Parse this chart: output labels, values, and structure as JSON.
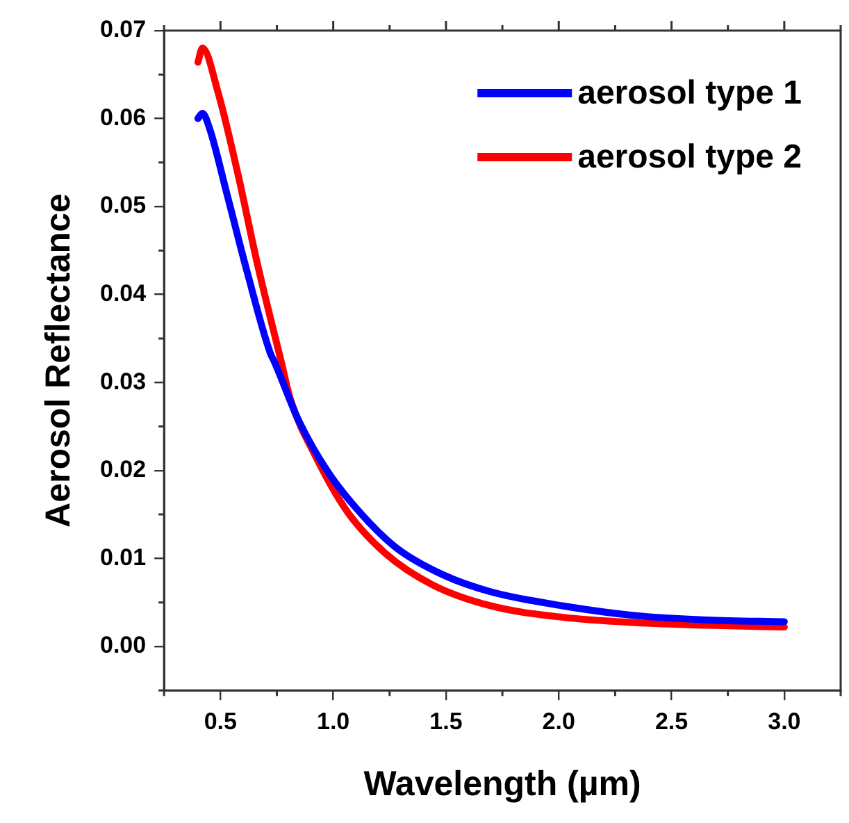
{
  "chart_data": {
    "type": "line",
    "xlabel": "Wavelength (µm)",
    "ylabel": "Aerosol Reflectance",
    "xlim": [
      0.25,
      3.25
    ],
    "xticks": [
      {
        "value": 0.5,
        "label": "0.5"
      },
      {
        "value": 1.0,
        "label": "1.0"
      },
      {
        "value": 1.5,
        "label": "1.5"
      },
      {
        "value": 2.0,
        "label": "2.0"
      },
      {
        "value": 2.5,
        "label": "2.5"
      },
      {
        "value": 3.0,
        "label": "3.0"
      }
    ],
    "ylim": [
      -0.005,
      0.07
    ],
    "yticks": [
      {
        "value": 0,
        "label": "0.00"
      },
      {
        "value": 0.01,
        "label": "0.01"
      },
      {
        "value": 0.02,
        "label": "0.02"
      },
      {
        "value": 0.03,
        "label": "0.03"
      },
      {
        "value": 0.04,
        "label": "0.04"
      },
      {
        "value": 0.05,
        "label": "0.05"
      },
      {
        "value": 0.06,
        "label": "0.06"
      },
      {
        "value": 0.07,
        "label": "0.07"
      }
    ],
    "grid": false,
    "legend": "top right",
    "marker": "none",
    "line_style": "solid",
    "series": [
      {
        "name": "aerosol type 1",
        "color": "#0000ff",
        "x": [
          0.4,
          0.42,
          0.45,
          0.53,
          0.62,
          0.72,
          0.74,
          0.85,
          0.98,
          1.13,
          1.28,
          1.49,
          1.7,
          2.02,
          2.34,
          2.66,
          3.0
        ],
        "values": [
          0.06,
          0.0606,
          0.059,
          0.0513,
          0.0424,
          0.0334,
          0.0323,
          0.0255,
          0.0197,
          0.0149,
          0.0112,
          0.0081,
          0.0062,
          0.0046,
          0.0035,
          0.003,
          0.0028
        ]
      },
      {
        "name": "aerosol type 2",
        "color": "#ff0000",
        "x": [
          0.4,
          0.42,
          0.49,
          0.58,
          0.66,
          0.77,
          0.81,
          0.92,
          1.06,
          1.23,
          1.44,
          1.7,
          2.02,
          2.34,
          2.66,
          3.0
        ],
        "values": [
          0.0664,
          0.068,
          0.0629,
          0.0534,
          0.0439,
          0.0323,
          0.0281,
          0.0217,
          0.0154,
          0.0106,
          0.007,
          0.0046,
          0.0033,
          0.0027,
          0.0024,
          0.0022
        ]
      }
    ]
  }
}
